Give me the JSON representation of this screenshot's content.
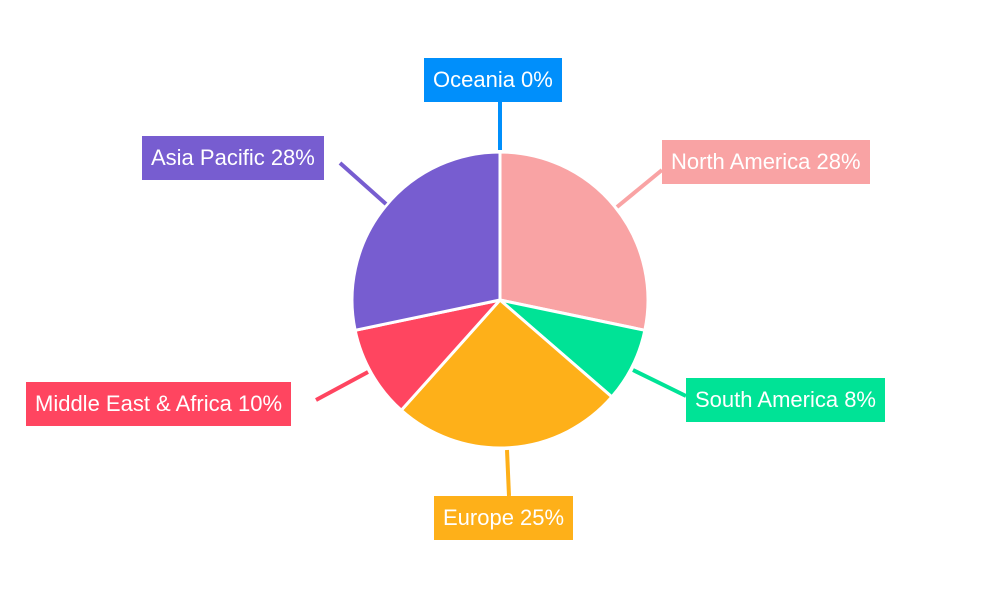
{
  "chart_data": {
    "type": "pie",
    "start_angle_deg": 0,
    "direction": "clockwise",
    "legend": "none",
    "slices": [
      {
        "label": "North America 28%",
        "name": "North America",
        "value": 28,
        "color": "#f9a3a4"
      },
      {
        "label": "South America 8%",
        "name": "South America",
        "value": 8,
        "color": "#00e396"
      },
      {
        "label": "Europe 25%",
        "name": "Europe",
        "value": 25,
        "color": "#feb019"
      },
      {
        "label": "Middle East & Africa 10%",
        "name": "Middle East & Africa",
        "value": 10,
        "color": "#ff4560"
      },
      {
        "label": "Asia Pacific 28%",
        "name": "Asia Pacific",
        "value": 28,
        "color": "#775dd0"
      },
      {
        "label": "Oceania 0%",
        "name": "Oceania",
        "value": 0,
        "color": "#008ffb"
      }
    ]
  }
}
